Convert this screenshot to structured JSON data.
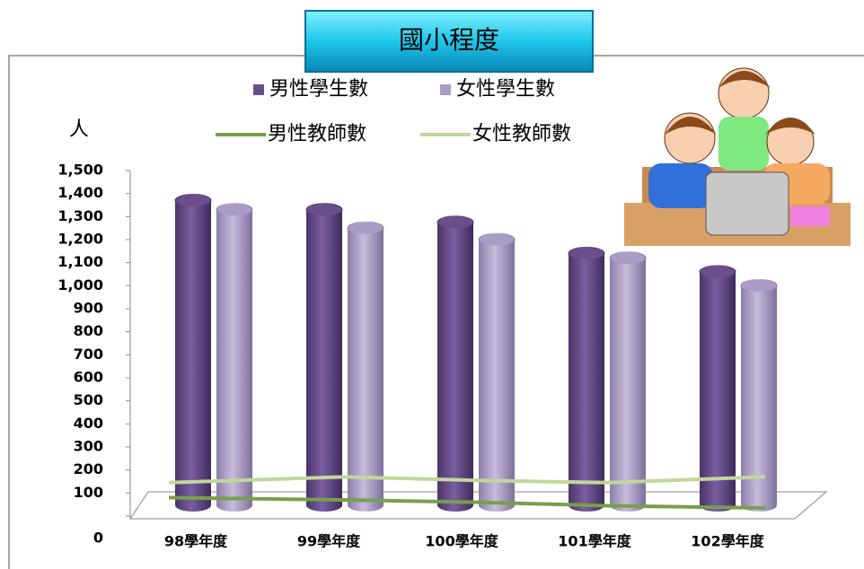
{
  "chart_data": {
    "type": "bar-line",
    "title": "國小程度",
    "y_label": "人",
    "categories": [
      "98學年度",
      "99學年度",
      "100學年度",
      "101學年度",
      "102學年度"
    ],
    "series": [
      {
        "name": "男性學生數",
        "color": "#6a4f8c",
        "kind": "bar",
        "values": [
          1370,
          1330,
          1275,
          1140,
          1060
        ]
      },
      {
        "name": "女性學生數",
        "color": "#aa9cc4",
        "kind": "bar",
        "values": [
          1330,
          1250,
          1200,
          1120,
          1000
        ]
      },
      {
        "name": "男性教師數",
        "color": "#77a04a",
        "kind": "line",
        "values": [
          80,
          70,
          60,
          45,
          35
        ]
      },
      {
        "name": "女性教師數",
        "color": "#c3d69b",
        "kind": "line",
        "values": [
          145,
          170,
          155,
          145,
          170
        ]
      }
    ],
    "ylim": [
      0,
      1500
    ],
    "yticks": [
      0,
      100,
      200,
      300,
      400,
      500,
      600,
      700,
      800,
      900,
      {
        "value": 1000,
        "label": "1,000"
      },
      {
        "value": 1100,
        "label": "1,100"
      },
      {
        "value": 1200,
        "label": "1,200"
      },
      {
        "value": 1300,
        "label": "1,300"
      },
      {
        "value": 1400,
        "label": "1,400"
      },
      {
        "value": 1500,
        "label": "1,500"
      }
    ]
  }
}
